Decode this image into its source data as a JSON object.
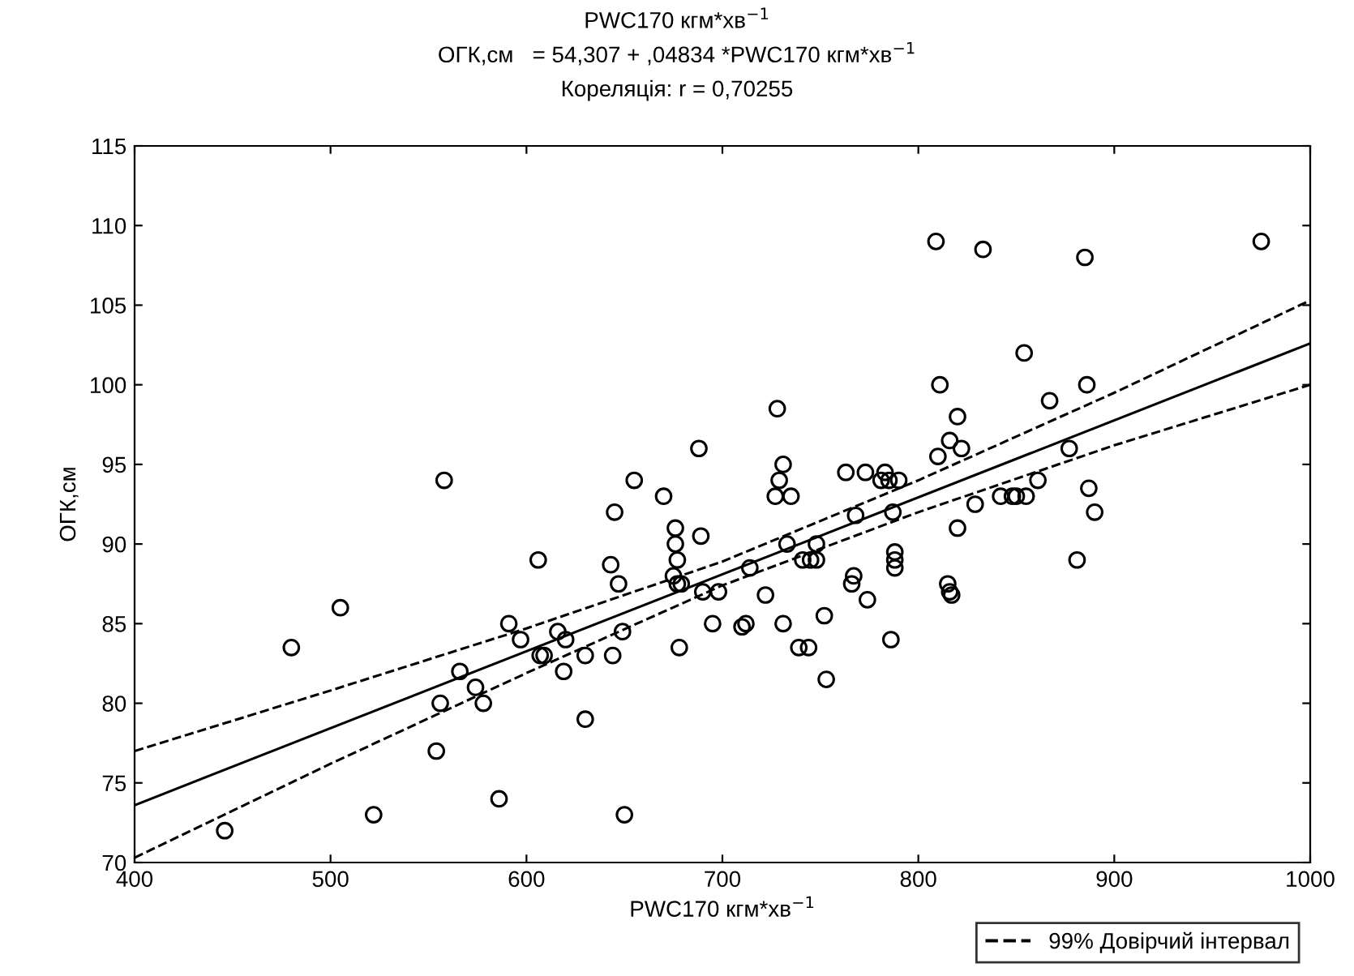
{
  "chart_data": {
    "type": "scatter",
    "title": "PWC170 кгм*хв$^{−1}$",
    "subtitle": "ОГК,см   = 54,307 + ,04834 *PWC170 кгм*хв$^{−1}$",
    "annotations": [
      "Кореляція: r = 0,70255"
    ],
    "xlabel": "PWC170 кгм*хв$^{−1}$",
    "ylabel": "ОГК,см",
    "xlim": [
      400,
      1000
    ],
    "xticks": [
      400,
      500,
      600,
      700,
      800,
      900,
      1000
    ],
    "ylim": [
      70,
      115
    ],
    "yticks": [
      70,
      75,
      80,
      85,
      90,
      95,
      100,
      105,
      110,
      115
    ],
    "grid": false,
    "legend": "bottom right",
    "series": [
      {
        "marker": "circle",
        "color": "#000000",
        "x": [
          446,
          480,
          505,
          522,
          554,
          556,
          558,
          566,
          574,
          578,
          586,
          591,
          597,
          606,
          607,
          609,
          616,
          619,
          620,
          630,
          630,
          643,
          644,
          645,
          647,
          649,
          650,
          655,
          670,
          675,
          676,
          676,
          677,
          678,
          677,
          679,
          688,
          689,
          690,
          695,
          698,
          710,
          712,
          714,
          722,
          727,
          728,
          729,
          731,
          731,
          733,
          735,
          739,
          741,
          744,
          745,
          748,
          748,
          752,
          753,
          763,
          766,
          768,
          767,
          773,
          774,
          781,
          783,
          785,
          786,
          787,
          788,
          788,
          788,
          790,
          809,
          810,
          811,
          815,
          816,
          816,
          817,
          820,
          820,
          822,
          829,
          833,
          842,
          848,
          850,
          854,
          855,
          861,
          867,
          877,
          881,
          885,
          886,
          887,
          890,
          975
        ],
        "values": [
          72,
          83.5,
          86,
          73,
          77,
          80,
          94,
          82,
          81,
          80,
          74,
          85,
          84,
          89,
          83,
          83,
          84.5,
          82,
          84,
          83,
          79,
          88.7,
          83,
          92,
          87.5,
          84.5,
          73,
          94,
          93,
          88,
          91,
          90,
          89,
          83.5,
          87.5,
          87.5,
          96,
          90.5,
          87,
          85,
          87,
          84.8,
          85,
          88.5,
          86.8,
          93,
          98.5,
          94,
          85,
          95,
          90,
          93,
          83.5,
          89,
          83.5,
          89,
          89,
          90,
          85.5,
          81.5,
          94.5,
          87.5,
          91.8,
          88,
          94.5,
          86.5,
          94,
          94.5,
          94,
          84,
          92,
          89.5,
          89,
          88.5,
          94,
          109,
          95.5,
          100,
          87.5,
          96.5,
          87,
          86.8,
          91,
          98,
          96,
          92.5,
          108.5,
          93,
          93,
          93,
          102,
          93,
          94,
          99,
          96,
          89,
          108,
          100,
          93.5,
          92,
          109
        ]
      },
      {
        "type": "line",
        "color": "#000000",
        "line_style": "solid",
        "x": [
          400,
          1000
        ],
        "values": [
          73.6,
          102.6
        ]
      },
      {
        "type": "line",
        "name": "99% Довірчий інтервал",
        "color": "#000000",
        "line_style": "dashed",
        "x": [
          400,
          500,
          600,
          700,
          800,
          900,
          1000
        ],
        "values": [
          77,
          80.8,
          84.7,
          88.9,
          94,
          99.5,
          105.3
        ]
      },
      {
        "type": "line",
        "color": "#000000",
        "line_style": "dashed",
        "x": [
          400,
          500,
          600,
          700,
          800,
          900,
          1000
        ],
        "values": [
          70.3,
          76.2,
          81.9,
          87.4,
          92,
          96.2,
          100
        ]
      }
    ]
  }
}
